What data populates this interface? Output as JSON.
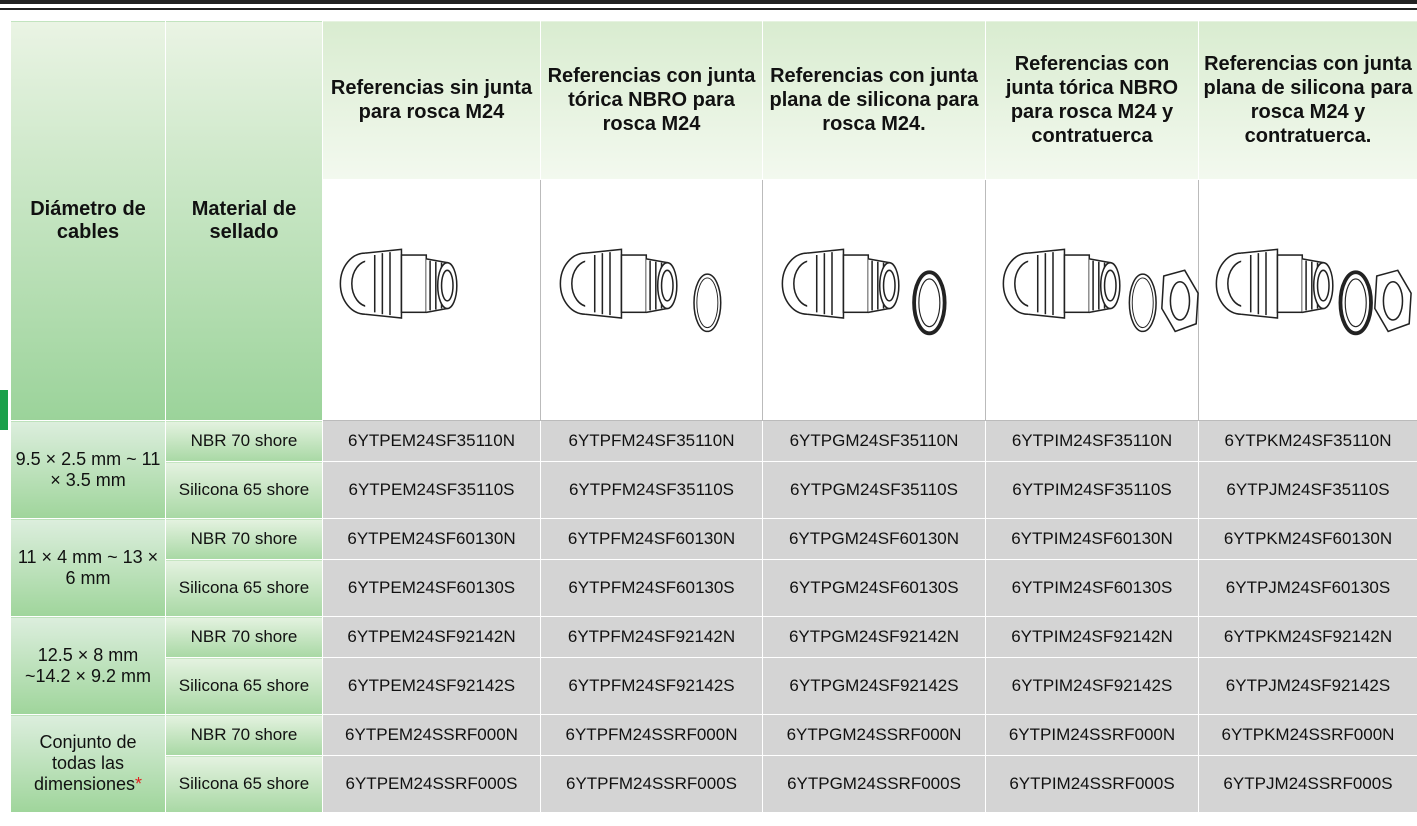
{
  "table": {
    "headers": [
      "Diámetro de cables",
      "Material de sellado",
      "Referencias sin junta para rosca M24",
      "Referencias con junta tórica NBRO para rosca M24",
      "Referencias con junta plana de silicona para rosca M24.",
      "Referencias con junta tórica NBRO para rosca M24 y contratuerca",
      "Referencias con junta plana de silicona para rosca M24 y contratuerca."
    ],
    "groups": [
      {
        "diameter": "9.5 × 2.5 mm ~ 11 × 3.5 mm",
        "rows": [
          {
            "material": "NBR 70 shore",
            "codes": [
              "6YTPEM24SF35110N",
              "6YTPFM24SF35110N",
              "6YTPGM24SF35110N",
              "6YTPIM24SF35110N",
              "6YTPKM24SF35110N"
            ]
          },
          {
            "material": "Silicona 65 shore",
            "codes": [
              "6YTPEM24SF35110S",
              "6YTPFM24SF35110S",
              "6YTPGM24SF35110S",
              "6YTPIM24SF35110S",
              "6YTPJM24SF35110S"
            ]
          }
        ]
      },
      {
        "diameter": "11 × 4 mm ~ 13 × 6 mm",
        "rows": [
          {
            "material": "NBR 70 shore",
            "codes": [
              "6YTPEM24SF60130N",
              "6YTPFM24SF60130N",
              "6YTPGM24SF60130N",
              "6YTPIM24SF60130N",
              "6YTPKM24SF60130N"
            ]
          },
          {
            "material": "Silicona 65 shore",
            "codes": [
              "6YTPEM24SF60130S",
              "6YTPFM24SF60130S",
              "6YTPGM24SF60130S",
              "6YTPIM24SF60130S",
              "6YTPJM24SF60130S"
            ]
          }
        ]
      },
      {
        "diameter": "12.5 × 8 mm ~14.2 × 9.2 mm",
        "rows": [
          {
            "material": "NBR 70 shore",
            "codes": [
              "6YTPEM24SF92142N",
              "6YTPFM24SF92142N",
              "6YTPGM24SF92142N",
              "6YTPIM24SF92142N",
              "6YTPKM24SF92142N"
            ]
          },
          {
            "material": "Silicona 65 shore",
            "codes": [
              "6YTPEM24SF92142S",
              "6YTPFM24SF92142S",
              "6YTPGM24SF92142S",
              "6YTPIM24SF92142S",
              "6YTPJM24SF92142S"
            ]
          }
        ]
      },
      {
        "diameter": "Conjunto de todas las dimensiones",
        "marker": "*",
        "rows": [
          {
            "material": "NBR 70 shore",
            "codes": [
              "6YTPEM24SSRF000N",
              "6YTPFM24SSRF000N",
              "6YTPGM24SSRF000N",
              "6YTPIM24SSRF000N",
              "6YTPKM24SSRF000N"
            ]
          },
          {
            "material": "Silicona 65 shore",
            "codes": [
              "6YTPEM24SSRF000S",
              "6YTPFM24SSRF000S",
              "6YTPGM24SSRF000S",
              "6YTPIM24SSRF000S",
              "6YTPJM24SSRF000S"
            ]
          }
        ]
      }
    ]
  }
}
